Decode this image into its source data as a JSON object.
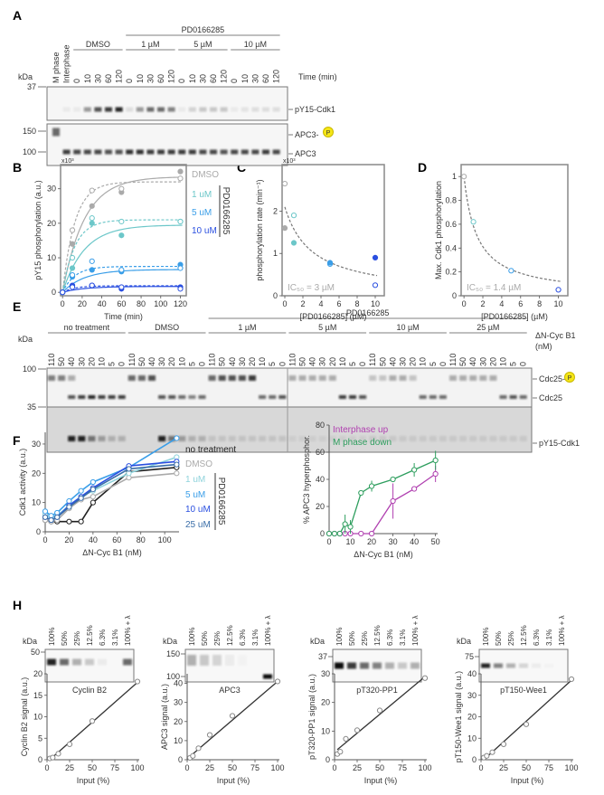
{
  "panels": {
    "A": "A",
    "B": "B",
    "C": "C",
    "D": "D",
    "E": "E",
    "F": "F",
    "G": "G",
    "H": "H"
  },
  "colors": {
    "dmso": "#aaaaaa",
    "uM1": "#6cc7c9",
    "uM5": "#3a9ee8",
    "uM10": "#2a4fe0",
    "uM25": "#3a6ea8",
    "none": "#222222",
    "interphase": "#b040b0",
    "mphase": "#2e9e5e",
    "phospho": "#f5e616"
  },
  "blots": {
    "A": {
      "kda": "kDa",
      "markers": [
        "37",
        "150",
        "100"
      ],
      "time_label": "Time (min)",
      "lanes": [
        "M phase",
        "Interphase",
        "0",
        "10",
        "30",
        "60",
        "120",
        "0",
        "10",
        "30",
        "60",
        "120",
        "0",
        "10",
        "30",
        "60",
        "120",
        "0",
        "10",
        "30",
        "60",
        "120"
      ],
      "groups": [
        {
          "label": "DMSO",
          "from": 2,
          "to": 6
        },
        {
          "label": "1 µM",
          "from": 7,
          "to": 11
        },
        {
          "label": "5 µM",
          "from": 12,
          "to": 16
        },
        {
          "label": "10 µM",
          "from": 17,
          "to": 21
        }
      ],
      "super_group": {
        "label": "PD0166285",
        "from": 7,
        "to": 21
      },
      "bands": {
        "pY15-Cdk1": [
          0,
          0.05,
          0.05,
          0.4,
          0.7,
          0.8,
          0.9,
          0.1,
          0.4,
          0.6,
          0.6,
          0.5,
          0.05,
          0.15,
          0.2,
          0.2,
          0.2,
          0.05,
          0.08,
          0.1,
          0.1,
          0.1
        ],
        "APC3-P": [
          0.6,
          0,
          0,
          0,
          0,
          0,
          0,
          0,
          0,
          0,
          0,
          0,
          0,
          0,
          0,
          0,
          0,
          0,
          0,
          0,
          0,
          0
        ],
        "APC3": [
          0,
          0.8,
          0.75,
          0.75,
          0.75,
          0.7,
          0.7,
          0.85,
          0.85,
          0.8,
          0.8,
          0.8,
          0.8,
          0.8,
          0.75,
          0.75,
          0.7,
          0.75,
          0.75,
          0.75,
          0.8,
          0.75
        ]
      },
      "row_labels": [
        "pY15-Cdk1",
        "APC3-",
        "APC3"
      ],
      "p_badge": "P"
    },
    "E": {
      "kda": "kDa",
      "markers": [
        "100",
        "35"
      ],
      "conc_label": "ΔN-Cyc B1",
      "conc_unit": "(nM)",
      "lane_values": [
        "110",
        "50",
        "40",
        "30",
        "20",
        "10",
        "5",
        "0"
      ],
      "groups": [
        "no treatment",
        "DMSO",
        "1 µM",
        "5 µM",
        "10 µM",
        "25 µM"
      ],
      "super_group": {
        "label": "PD0166285",
        "from": 2,
        "to": 5
      },
      "bands": {
        "Cdc25-P": [
          [
            0.5,
            0.5,
            0.3,
            0,
            0,
            0,
            0,
            0
          ],
          [
            0.6,
            0.6,
            0.7,
            0,
            0,
            0,
            0,
            0
          ],
          [
            0.6,
            0.7,
            0.7,
            0.7,
            0.8,
            0,
            0,
            0
          ],
          [
            0.3,
            0.3,
            0.3,
            0.3,
            0.3,
            0,
            0,
            0
          ],
          [
            0.2,
            0.2,
            0.3,
            0.3,
            0.2,
            0,
            0,
            0
          ],
          [
            0.3,
            0.3,
            0.3,
            0.3,
            0.3,
            0,
            0,
            0
          ]
        ],
        "Cdc25": [
          [
            0,
            0,
            0.7,
            0.8,
            0.9,
            0.8,
            0.8,
            0.8
          ],
          [
            0,
            0,
            0,
            0.7,
            0.7,
            0.6,
            0.5,
            0.6
          ],
          [
            0,
            0,
            0,
            0,
            0,
            0.6,
            0.6,
            0.7
          ],
          [
            0,
            0,
            0,
            0,
            0,
            0.8,
            0.8,
            0.7
          ],
          [
            0,
            0,
            0,
            0,
            0,
            0.6,
            0.6,
            0.6
          ],
          [
            0,
            0,
            0,
            0,
            0,
            0.6,
            0.7,
            0.6
          ]
        ],
        "pY15-Cdk1": [
          [
            0,
            0,
            0.9,
            0.9,
            0.5,
            0.3,
            0.2,
            0.2
          ],
          [
            0,
            0,
            0,
            0.9,
            0.5,
            0.3,
            0.2,
            0.2
          ],
          [
            0.1,
            0.1,
            0.1,
            0.1,
            0.1,
            0.1,
            0.1,
            0.1
          ],
          [
            0.05,
            0.05,
            0.05,
            0.05,
            0.05,
            0.05,
            0.05,
            0.05
          ],
          [
            0.08,
            0.08,
            0.08,
            0.08,
            0.08,
            0.08,
            0.08,
            0.08
          ],
          [
            0.08,
            0.08,
            0.08,
            0.08,
            0.08,
            0.08,
            0.08,
            0.08
          ]
        ]
      },
      "row_labels": [
        "Cdc25-",
        "Cdc25",
        "pY15-Cdk1"
      ],
      "p_badge": "P"
    },
    "H": [
      {
        "caption": "Cyclin B2",
        "kda": "kDa",
        "markers": [
          "50"
        ],
        "lanes": [
          "100%",
          "50%",
          "25%",
          "12.5%",
          "6.3%",
          "3.1%",
          "100% + λ"
        ],
        "bands": [
          0.9,
          0.6,
          0.3,
          0.2,
          0.05,
          0,
          0.6
        ]
      },
      {
        "caption": "APC3",
        "kda": "kDa",
        "markers": [
          "150",
          "100"
        ],
        "lanes": [
          "100%",
          "50%",
          "25%",
          "12.5%",
          "6.3%",
          "3.1%",
          "100% + λ"
        ],
        "bands": [
          0.3,
          0.2,
          0.15,
          0.05,
          0.02,
          0,
          1.0
        ]
      },
      {
        "caption": "pT320-PP1",
        "kda": "kDa",
        "markers": [
          "37"
        ],
        "lanes": [
          "100%",
          "50%",
          "25%",
          "12.5%",
          "6.3%",
          "3.1%",
          "100% + λ"
        ],
        "bands": [
          1,
          0.8,
          0.6,
          0.5,
          0.3,
          0.2,
          0.3
        ]
      },
      {
        "caption": "pT150-Wee1",
        "kda": "kDa",
        "markers": [
          "75"
        ],
        "lanes": [
          "100%",
          "50%",
          "25%",
          "12.5%",
          "6.3%",
          "3.1%",
          "100% + λ"
        ],
        "bands": [
          0.9,
          0.5,
          0.3,
          0.15,
          0.05,
          0.02,
          0
        ]
      }
    ]
  },
  "chart_data": [
    {
      "id": "B",
      "type": "scatter",
      "xlabel": "Time (min)",
      "ylabel": "pY15 phosphorylation (a.u.)",
      "multiplier": "x10³",
      "xlim": [
        -2,
        126
      ],
      "ylim": [
        -1,
        37
      ],
      "xticks": [
        0,
        20,
        40,
        60,
        80,
        100,
        120
      ],
      "yticks": [
        0,
        10,
        20,
        30
      ],
      "frame": "box",
      "x": [
        0,
        10,
        30,
        60,
        120
      ],
      "series": [
        {
          "name": "DMSO",
          "color": "#aaaaaa",
          "filled": [
            0,
            14,
            25,
            29,
            35
          ],
          "open": [
            0,
            18,
            29.5,
            30,
            33
          ],
          "fit_solid": 33.5,
          "fit_dashed": 32
        },
        {
          "name": "1 uM",
          "color": "#6cc7c9",
          "filled": [
            0,
            7,
            20,
            16.5,
            20.5
          ],
          "open": [
            0,
            10,
            21.5,
            20.5,
            20.5
          ],
          "fit_solid": 19.5,
          "fit_dashed": 21
        },
        {
          "name": "5 uM",
          "color": "#3a9ee8",
          "filled": [
            0,
            4.5,
            6.5,
            6,
            8
          ],
          "open": [
            0,
            5,
            9,
            6.5,
            7
          ],
          "fit_solid": 6.6,
          "fit_dashed": 7.5
        },
        {
          "name": "10 uM",
          "color": "#2a4fe0",
          "filled": [
            0,
            2,
            2,
            1,
            1.5
          ],
          "open": [
            0,
            1.5,
            2,
            1.5,
            1
          ],
          "fit_solid": 1.7,
          "fit_dashed": 1.9
        }
      ],
      "legend_group": "PD0166285"
    },
    {
      "id": "C",
      "type": "scatter",
      "xlabel": "[PD0166285] (µM)",
      "ylabel": "phosphorylation rate (min⁻¹)",
      "multiplier": "x10³",
      "xlim": [
        -0.3,
        11
      ],
      "ylim": [
        0,
        3.1
      ],
      "xticks": [
        0,
        2,
        4,
        6,
        8,
        10
      ],
      "yticks": [
        0,
        1,
        2
      ],
      "frame": "box",
      "points": [
        {
          "x": 0,
          "y": 2.65,
          "fill": "open",
          "color": "#aaaaaa"
        },
        {
          "x": 0,
          "y": 1.6,
          "fill": "filled",
          "color": "#aaaaaa"
        },
        {
          "x": 1,
          "y": 1.9,
          "fill": "open",
          "color": "#6cc7c9"
        },
        {
          "x": 1,
          "y": 1.25,
          "fill": "filled",
          "color": "#6cc7c9"
        },
        {
          "x": 5,
          "y": 0.75,
          "fill": "open",
          "color": "#3a9ee8"
        },
        {
          "x": 5,
          "y": 0.78,
          "fill": "filled",
          "color": "#3a9ee8"
        },
        {
          "x": 10,
          "y": 0.9,
          "fill": "filled",
          "color": "#2a4fe0"
        },
        {
          "x": 10,
          "y": 0.25,
          "fill": "open",
          "color": "#2a4fe0"
        }
      ],
      "fit": {
        "top": 2.1,
        "ic50": 3
      },
      "annotation": "IC₅₀ = 3 µM"
    },
    {
      "id": "D",
      "type": "scatter",
      "xlabel": "[PD0166285] (µM)",
      "ylabel": "Max. Cdk1 phosphorylation",
      "xlim": [
        -0.3,
        11
      ],
      "ylim": [
        0,
        1.1
      ],
      "xticks": [
        0,
        2,
        4,
        6,
        8,
        10
      ],
      "yticks": [
        0,
        0.2,
        0.4,
        0.6,
        0.8,
        1.0
      ],
      "frame": "box",
      "points": [
        {
          "x": 0,
          "y": 1.0,
          "fill": "open",
          "color": "#aaaaaa"
        },
        {
          "x": 1,
          "y": 0.62,
          "fill": "open",
          "color": "#6cc7c9"
        },
        {
          "x": 5,
          "y": 0.21,
          "fill": "open",
          "color": "#3a9ee8"
        },
        {
          "x": 10,
          "y": 0.05,
          "fill": "open",
          "color": "#2a4fe0"
        }
      ],
      "fit": {
        "top": 1.0,
        "ic50": 1.4
      },
      "annotation": "IC₅₀ = 1.4 µM"
    },
    {
      "id": "F",
      "type": "line",
      "xlabel": "ΔN-Cyc B1 (nM)",
      "ylabel": "Cdk1 activity (a.u.)",
      "xlim": [
        0,
        112
      ],
      "ylim": [
        0,
        34
      ],
      "xticks": [
        0,
        20,
        40,
        60,
        80,
        100
      ],
      "yticks": [
        0,
        10,
        20,
        30
      ],
      "frame": "open",
      "x": [
        0,
        5,
        10,
        20,
        30,
        40,
        70,
        110
      ],
      "series": [
        {
          "name": "no treatment",
          "color": "#222222",
          "values": [
            4,
            3.5,
            3.5,
            3.5,
            3.5,
            10,
            20.5,
            22
          ]
        },
        {
          "name": "DMSO",
          "color": "#aaaaaa",
          "values": [
            4,
            3.5,
            4,
            8,
            11,
            12,
            18.5,
            20
          ]
        },
        {
          "name": "1 uM",
          "color": "#8fd3dc",
          "values": [
            6,
            5,
            5.5,
            9,
            12,
            14,
            20,
            25.5
          ]
        },
        {
          "name": "5 uM",
          "color": "#3a9ee8",
          "values": [
            7,
            5.5,
            6.5,
            10.5,
            14,
            17,
            22,
            32
          ]
        },
        {
          "name": "10 uM",
          "color": "#2a4fe0",
          "values": [
            5,
            4,
            5,
            9,
            12,
            15,
            22.5,
            24
          ]
        },
        {
          "name": "25 uM",
          "color": "#3a6ea8",
          "values": [
            5,
            4,
            5,
            8.5,
            11.5,
            14.5,
            21.5,
            23
          ]
        }
      ],
      "legend_group": "PD0166285"
    },
    {
      "id": "G",
      "type": "line",
      "xlabel": "ΔN-Cyc B1 (nM)",
      "ylabel": "% APC3 hyperphosphor.",
      "xlim": [
        0,
        51
      ],
      "ylim": [
        0,
        80
      ],
      "xticks": [
        0,
        10,
        20,
        30,
        40,
        50
      ],
      "yticks": [
        0,
        20,
        40,
        60,
        80
      ],
      "frame": "open",
      "series": [
        {
          "name": "Interphase up",
          "color": "#b040b0",
          "x": [
            0,
            2.5,
            5,
            7.5,
            10,
            15,
            20,
            30,
            40,
            50
          ],
          "values": [
            0,
            0,
            0,
            0,
            0,
            0,
            0,
            24,
            33,
            44
          ],
          "err": [
            0,
            0,
            0,
            0,
            0,
            0,
            0,
            13,
            2,
            6
          ]
        },
        {
          "name": "M phase down",
          "color": "#2e9e5e",
          "x": [
            0,
            2.5,
            5,
            7.5,
            10,
            15,
            20,
            30,
            40,
            50
          ],
          "values": [
            0,
            0,
            0,
            7,
            5,
            30,
            35,
            40,
            47,
            54
          ],
          "err": [
            0,
            0,
            0,
            7,
            5,
            2,
            4,
            2,
            5,
            7
          ]
        }
      ]
    },
    {
      "id": "H1",
      "type": "scatter",
      "xlabel": "Input (%)",
      "ylabel": "Cyclin B2 signal (a.u.)",
      "xlim": [
        0,
        102
      ],
      "ylim": [
        0,
        20
      ],
      "xticks": [
        0,
        25,
        50,
        75,
        100
      ],
      "yticks": [
        0,
        5,
        10,
        15,
        20
      ],
      "frame": "open",
      "x": [
        3.1,
        6.3,
        12.5,
        25,
        50,
        100
      ],
      "values": [
        0.3,
        0.5,
        1.4,
        3.6,
        9,
        18.2
      ],
      "fit": [
        [
          3,
          0
        ],
        [
          100,
          18
        ]
      ]
    },
    {
      "id": "H2",
      "type": "scatter",
      "xlabel": "Input (%)",
      "ylabel": "APC3 signal (a.u.)",
      "xlim": [
        0,
        102
      ],
      "ylim": [
        0,
        45
      ],
      "xticks": [
        0,
        25,
        50,
        75,
        100
      ],
      "yticks": [
        0,
        10,
        20,
        30,
        40
      ],
      "frame": "open",
      "x": [
        3.1,
        6.3,
        12.5,
        25,
        50,
        100
      ],
      "values": [
        1,
        2,
        6,
        13,
        23,
        41
      ],
      "fit": [
        [
          0,
          0.5
        ],
        [
          100,
          41
        ]
      ]
    },
    {
      "id": "H3",
      "type": "scatter",
      "xlabel": "Input (%)",
      "ylabel": "pT320-PP1 signal (a.u.)",
      "xlim": [
        0,
        102
      ],
      "ylim": [
        0,
        30
      ],
      "xticks": [
        0,
        25,
        50,
        75,
        100
      ],
      "yticks": [
        0,
        10,
        20,
        30
      ],
      "frame": "open",
      "x": [
        3.1,
        6.3,
        12.5,
        25,
        50,
        100
      ],
      "values": [
        2,
        2.8,
        7.3,
        10.3,
        17.2,
        28.5
      ],
      "fit": [
        [
          3,
          3.5
        ],
        [
          100,
          29
        ]
      ]
    },
    {
      "id": "H4",
      "type": "scatter",
      "xlabel": "Input (%)",
      "ylabel": "pT150-Wee1 signal (a.u.)",
      "xlim": [
        0,
        102
      ],
      "ylim": [
        0,
        40
      ],
      "xticks": [
        0,
        25,
        50,
        75,
        100
      ],
      "yticks": [
        0,
        10,
        20,
        30,
        40
      ],
      "frame": "open",
      "x": [
        3.1,
        6.3,
        12.5,
        25,
        50,
        100
      ],
      "values": [
        1,
        1.8,
        3.5,
        7.2,
        16.5,
        37.5
      ],
      "fit": [
        [
          3,
          0
        ],
        [
          100,
          37
        ]
      ]
    }
  ]
}
